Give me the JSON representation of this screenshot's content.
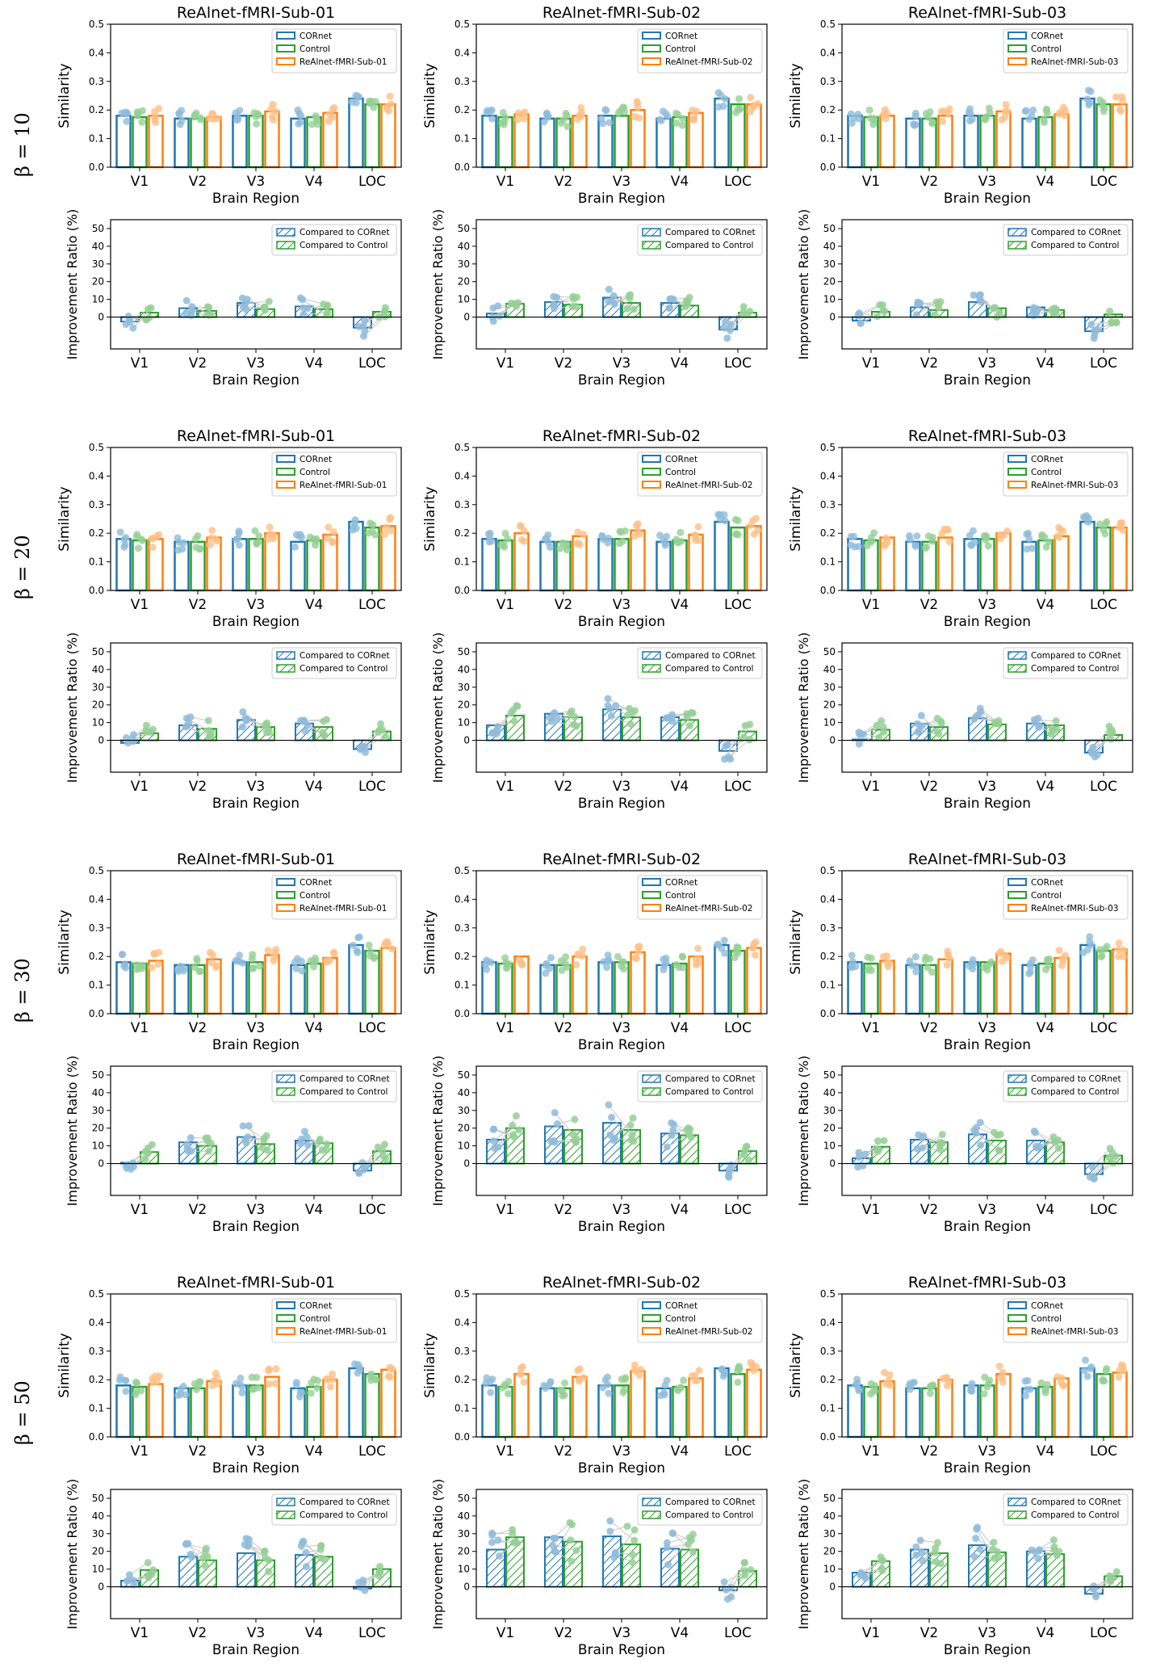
{
  "colors": {
    "cornet": "#1f77b4",
    "control": "#2ca02c",
    "realnet": "#ff7f0e",
    "cornet_light": "#8fbbd9",
    "control_light": "#95cf95",
    "realnet_light": "#ffbf86",
    "axis": "#000000"
  },
  "common": {
    "categories": [
      "V1",
      "V2",
      "V3",
      "V4",
      "LOC"
    ],
    "xlabel": "Brain Region",
    "sim_ylabel": "Similarity",
    "imp_ylabel": "Improvement Ratio (%)",
    "sim_yticks": [
      "0.0",
      "0.1",
      "0.2",
      "0.3",
      "0.4",
      "0.5"
    ],
    "imp_yticks": [
      "0",
      "10",
      "20",
      "30",
      "40",
      "50"
    ],
    "legend_cornet": "CORnet",
    "legend_control": "Control",
    "legend_cmp_cornet": "Compared to CORnet",
    "legend_cmp_control": "Compared to Control"
  },
  "betas": [
    {
      "label": "β = 10"
    },
    {
      "label": "β = 20"
    },
    {
      "label": "β = 30"
    },
    {
      "label": "β = 50"
    }
  ],
  "subjects": [
    {
      "title": "ReAlnet-fMRI-Sub-01",
      "legend": "ReAlnet-fMRI-Sub-01"
    },
    {
      "title": "ReAlnet-fMRI-Sub-02",
      "legend": "ReAlnet-fMRI-Sub-02"
    },
    {
      "title": "ReAlnet-fMRI-Sub-03",
      "legend": "ReAlnet-fMRI-Sub-03"
    }
  ],
  "chart_data": [
    {
      "type": "bar",
      "beta": 10,
      "subject": "ReAlnet-fMRI-Sub-01",
      "ylim": [
        0,
        0.5
      ],
      "similarity": {
        "CORnet": [
          0.18,
          0.17,
          0.18,
          0.17,
          0.24
        ],
        "Control": [
          0.175,
          0.17,
          0.18,
          0.175,
          0.22
        ],
        "ReAlnet": [
          0.18,
          0.175,
          0.195,
          0.19,
          0.22
        ]
      },
      "improvement": {
        "ylim": [
          -18,
          55
        ],
        "vs_CORnet": [
          -2.5,
          5,
          8,
          6,
          -6
        ],
        "vs_Control": [
          2.5,
          3.5,
          4.5,
          4.5,
          3
        ]
      }
    },
    {
      "type": "bar",
      "beta": 10,
      "subject": "ReAlnet-fMRI-Sub-02",
      "ylim": [
        0,
        0.5
      ],
      "similarity": {
        "CORnet": [
          0.18,
          0.17,
          0.18,
          0.17,
          0.24
        ],
        "Control": [
          0.175,
          0.17,
          0.18,
          0.175,
          0.22
        ],
        "ReAlnet": [
          0.185,
          0.18,
          0.2,
          0.19,
          0.22
        ]
      },
      "improvement": {
        "ylim": [
          -18,
          55
        ],
        "vs_CORnet": [
          2,
          8.5,
          11,
          8,
          -7
        ],
        "vs_Control": [
          7.5,
          7,
          8,
          6.5,
          2.5
        ]
      }
    },
    {
      "type": "bar",
      "beta": 10,
      "subject": "ReAlnet-fMRI-Sub-03",
      "ylim": [
        0,
        0.5
      ],
      "similarity": {
        "CORnet": [
          0.18,
          0.17,
          0.18,
          0.17,
          0.24
        ],
        "Control": [
          0.175,
          0.17,
          0.18,
          0.175,
          0.22
        ],
        "ReAlnet": [
          0.18,
          0.18,
          0.195,
          0.185,
          0.22
        ]
      },
      "improvement": {
        "ylim": [
          -18,
          55
        ],
        "vs_CORnet": [
          -2,
          5.5,
          8.5,
          5.5,
          -8
        ],
        "vs_Control": [
          3,
          4,
          5,
          4,
          1.5
        ]
      }
    },
    {
      "type": "bar",
      "beta": 20,
      "subject": "ReAlnet-fMRI-Sub-01",
      "ylim": [
        0,
        0.5
      ],
      "similarity": {
        "CORnet": [
          0.18,
          0.17,
          0.18,
          0.17,
          0.24
        ],
        "Control": [
          0.175,
          0.17,
          0.18,
          0.175,
          0.22
        ],
        "ReAlnet": [
          0.18,
          0.185,
          0.2,
          0.195,
          0.225
        ]
      },
      "improvement": {
        "ylim": [
          -18,
          55
        ],
        "vs_CORnet": [
          -1.5,
          8.5,
          11.5,
          9.5,
          -5
        ],
        "vs_Control": [
          4,
          6.5,
          7.5,
          7.5,
          5
        ]
      }
    },
    {
      "type": "bar",
      "beta": 20,
      "subject": "ReAlnet-fMRI-Sub-02",
      "ylim": [
        0,
        0.5
      ],
      "similarity": {
        "CORnet": [
          0.18,
          0.17,
          0.18,
          0.17,
          0.24
        ],
        "Control": [
          0.175,
          0.17,
          0.18,
          0.175,
          0.22
        ],
        "ReAlnet": [
          0.2,
          0.19,
          0.21,
          0.195,
          0.225
        ]
      },
      "improvement": {
        "ylim": [
          -18,
          55
        ],
        "vs_CORnet": [
          8.5,
          15,
          17.5,
          13,
          -6
        ],
        "vs_Control": [
          14,
          13,
          13,
          11.5,
          5
        ]
      }
    },
    {
      "type": "bar",
      "beta": 20,
      "subject": "ReAlnet-fMRI-Sub-03",
      "ylim": [
        0,
        0.5
      ],
      "similarity": {
        "CORnet": [
          0.18,
          0.17,
          0.18,
          0.17,
          0.24
        ],
        "Control": [
          0.175,
          0.17,
          0.18,
          0.175,
          0.22
        ],
        "ReAlnet": [
          0.185,
          0.185,
          0.2,
          0.19,
          0.22
        ]
      },
      "improvement": {
        "ylim": [
          -18,
          55
        ],
        "vs_CORnet": [
          0.5,
          9.5,
          12.5,
          9.5,
          -7
        ],
        "vs_Control": [
          6,
          7.5,
          9,
          8.5,
          3
        ]
      }
    },
    {
      "type": "bar",
      "beta": 30,
      "subject": "ReAlnet-fMRI-Sub-01",
      "ylim": [
        0,
        0.5
      ],
      "similarity": {
        "CORnet": [
          0.18,
          0.17,
          0.18,
          0.17,
          0.24
        ],
        "Control": [
          0.175,
          0.17,
          0.18,
          0.175,
          0.22
        ],
        "ReAlnet": [
          0.185,
          0.19,
          0.205,
          0.195,
          0.23
        ]
      },
      "improvement": {
        "ylim": [
          -18,
          55
        ],
        "vs_CORnet": [
          0.5,
          12,
          15,
          13,
          -4
        ],
        "vs_Control": [
          6.5,
          10,
          11,
          11.5,
          7
        ]
      }
    },
    {
      "type": "bar",
      "beta": 30,
      "subject": "ReAlnet-fMRI-Sub-02",
      "ylim": [
        0,
        0.5
      ],
      "similarity": {
        "CORnet": [
          0.18,
          0.17,
          0.18,
          0.17,
          0.24
        ],
        "Control": [
          0.175,
          0.17,
          0.18,
          0.175,
          0.22
        ],
        "ReAlnet": [
          0.2,
          0.2,
          0.215,
          0.2,
          0.23
        ]
      },
      "improvement": {
        "ylim": [
          -18,
          55
        ],
        "vs_CORnet": [
          13.5,
          21,
          23,
          17,
          -4
        ],
        "vs_Control": [
          20,
          19,
          19,
          16,
          7
        ]
      }
    },
    {
      "type": "bar",
      "beta": 30,
      "subject": "ReAlnet-fMRI-Sub-03",
      "ylim": [
        0,
        0.5
      ],
      "similarity": {
        "CORnet": [
          0.18,
          0.17,
          0.18,
          0.17,
          0.24
        ],
        "Control": [
          0.175,
          0.17,
          0.18,
          0.175,
          0.22
        ],
        "ReAlnet": [
          0.185,
          0.19,
          0.21,
          0.195,
          0.225
        ]
      },
      "improvement": {
        "ylim": [
          -18,
          55
        ],
        "vs_CORnet": [
          3,
          13.5,
          16.5,
          13,
          -6
        ],
        "vs_Control": [
          9.5,
          12,
          13,
          12,
          4.5
        ]
      }
    },
    {
      "type": "bar",
      "beta": 50,
      "subject": "ReAlnet-fMRI-Sub-01",
      "ylim": [
        0,
        0.5
      ],
      "similarity": {
        "CORnet": [
          0.18,
          0.17,
          0.18,
          0.17,
          0.24
        ],
        "Control": [
          0.175,
          0.17,
          0.18,
          0.175,
          0.22
        ],
        "ReAlnet": [
          0.185,
          0.195,
          0.21,
          0.2,
          0.235
        ]
      },
      "improvement": {
        "ylim": [
          -18,
          55
        ],
        "vs_CORnet": [
          3.5,
          17,
          19,
          18,
          -1
        ],
        "vs_Control": [
          9.5,
          15,
          15,
          17,
          10
        ]
      }
    },
    {
      "type": "bar",
      "beta": 50,
      "subject": "ReAlnet-fMRI-Sub-02",
      "ylim": [
        0,
        0.5
      ],
      "similarity": {
        "CORnet": [
          0.18,
          0.17,
          0.18,
          0.17,
          0.24
        ],
        "Control": [
          0.175,
          0.17,
          0.18,
          0.175,
          0.22
        ],
        "ReAlnet": [
          0.22,
          0.21,
          0.23,
          0.205,
          0.235
        ]
      },
      "improvement": {
        "ylim": [
          -18,
          55
        ],
        "vs_CORnet": [
          21,
          28,
          28.5,
          21.5,
          -2
        ],
        "vs_Control": [
          28,
          25.5,
          24,
          21,
          9
        ]
      }
    },
    {
      "type": "bar",
      "beta": 50,
      "subject": "ReAlnet-fMRI-Sub-03",
      "ylim": [
        0,
        0.5
      ],
      "similarity": {
        "CORnet": [
          0.18,
          0.17,
          0.18,
          0.17,
          0.24
        ],
        "Control": [
          0.175,
          0.17,
          0.18,
          0.175,
          0.22
        ],
        "ReAlnet": [
          0.195,
          0.2,
          0.22,
          0.205,
          0.225
        ]
      },
      "improvement": {
        "ylim": [
          -18,
          55
        ],
        "vs_CORnet": [
          8,
          21,
          23.5,
          20,
          -4
        ],
        "vs_Control": [
          14.5,
          19,
          19.5,
          18.5,
          6
        ]
      }
    }
  ]
}
